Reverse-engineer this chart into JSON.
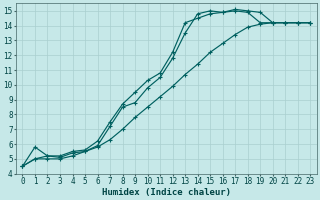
{
  "xlabel": "Humidex (Indice chaleur)",
  "bg_color": "#c6e8e8",
  "grid_color": "#aacfcf",
  "line_color": "#006060",
  "line1_x": [
    0,
    1,
    2,
    3,
    4,
    5,
    6,
    7,
    8,
    9,
    10,
    11,
    12,
    13,
    14,
    15,
    16,
    17,
    18,
    19,
    20,
    21,
    22,
    23
  ],
  "line1_y": [
    4.5,
    5.8,
    5.2,
    5.2,
    5.5,
    5.6,
    6.2,
    7.5,
    8.7,
    9.5,
    10.3,
    10.8,
    12.2,
    14.2,
    14.5,
    14.8,
    14.9,
    15.1,
    15.0,
    14.9,
    14.2,
    14.2,
    14.2,
    14.2
  ],
  "line2_x": [
    0,
    1,
    2,
    3,
    4,
    5,
    6,
    7,
    8,
    9,
    10,
    11,
    12,
    13,
    14,
    15,
    16,
    17,
    18,
    19,
    20,
    21,
    22,
    23
  ],
  "line2_y": [
    4.5,
    5.0,
    5.2,
    5.1,
    5.4,
    5.5,
    5.9,
    7.2,
    8.5,
    8.8,
    9.8,
    10.5,
    11.8,
    13.5,
    14.8,
    15.0,
    14.9,
    15.0,
    14.9,
    14.2,
    14.2,
    14.2,
    14.2,
    14.2
  ],
  "line3_x": [
    0,
    1,
    2,
    3,
    4,
    5,
    6,
    7,
    8,
    9,
    10,
    11,
    12,
    13,
    14,
    15,
    16,
    17,
    18,
    19,
    20,
    21,
    22,
    23
  ],
  "line3_y": [
    4.5,
    5.0,
    5.0,
    5.0,
    5.2,
    5.5,
    5.8,
    6.3,
    7.0,
    7.8,
    8.5,
    9.2,
    9.9,
    10.7,
    11.4,
    12.2,
    12.8,
    13.4,
    13.9,
    14.1,
    14.2,
    14.2,
    14.2,
    14.2
  ],
  "xlim": [
    -0.5,
    23.5
  ],
  "ylim": [
    4,
    15.5
  ],
  "xticks": [
    0,
    1,
    2,
    3,
    4,
    5,
    6,
    7,
    8,
    9,
    10,
    11,
    12,
    13,
    14,
    15,
    16,
    17,
    18,
    19,
    20,
    21,
    22,
    23
  ],
  "yticks": [
    4,
    5,
    6,
    7,
    8,
    9,
    10,
    11,
    12,
    13,
    14,
    15
  ],
  "tick_fontsize": 5.5,
  "xlabel_fontsize": 6.5
}
